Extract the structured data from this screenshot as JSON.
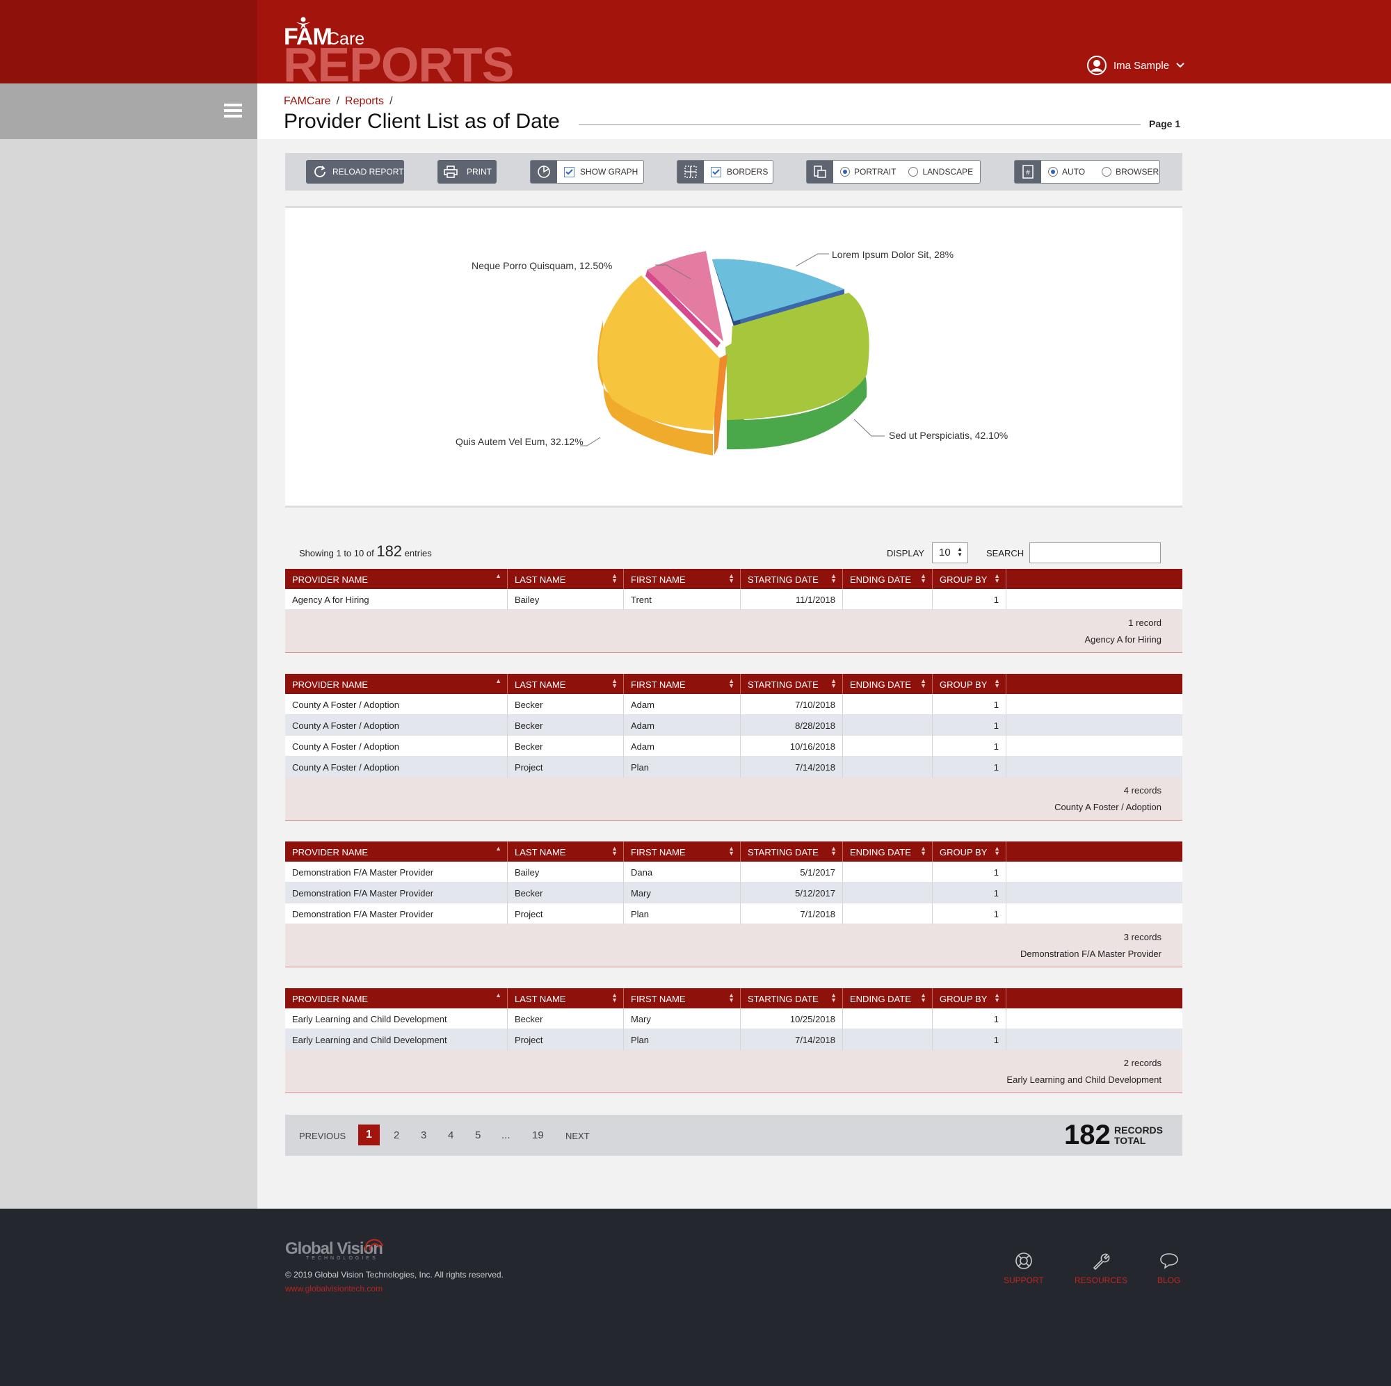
{
  "header": {
    "logo_fam": "FAM",
    "logo_care": "Care",
    "logo_reports": "REPORTS",
    "user_name": "Ima Sample"
  },
  "breadcrumb": {
    "items": [
      "FAMCare",
      "Reports"
    ],
    "separator": "/"
  },
  "page_title": "Provider Client List as of Date",
  "page_label": "Page 1",
  "toolbar": {
    "reload": "RELOAD REPORT",
    "print": "PRINT",
    "show_graph": "SHOW GRAPH",
    "borders": "BORDERS",
    "portrait": "PORTRAIT",
    "landscape": "LANDSCAPE",
    "auto": "AUTO",
    "browser": "BROWSER"
  },
  "chart_data": {
    "type": "pie",
    "title": "",
    "slices": [
      {
        "label": "Lorem Ipsum Dolor Sit, 28%",
        "value": 28,
        "color": "#6bbfdd"
      },
      {
        "label": "Sed ut Perspiciatis, 42.10%",
        "value": 42.1,
        "color": "#a6c63c"
      },
      {
        "label": "Quis Autem Vel Eum, 32.12%",
        "value": 32.12,
        "color": "#f7c43d"
      },
      {
        "label": "Neque Porro Quisquam, 12.50%",
        "value": 12.5,
        "color": "#e47ba0"
      }
    ]
  },
  "entries": {
    "prefix": "Showing 1 to 10 of",
    "count": "182",
    "suffix": "entries",
    "display_label": "DISPLAY",
    "display_value": "10",
    "search_label": "SEARCH"
  },
  "columns": [
    "PROVIDER NAME",
    "LAST NAME",
    "FIRST NAME",
    "STARTING DATE",
    "ENDING DATE",
    "GROUP BY"
  ],
  "groups": [
    {
      "rows": [
        [
          "Agency A for Hiring",
          "Bailey",
          "Trent",
          "11/1/2018",
          "",
          "1"
        ]
      ],
      "records": "1 record",
      "name": "Agency A for Hiring"
    },
    {
      "rows": [
        [
          "County A Foster / Adoption",
          "Becker",
          "Adam",
          "7/10/2018",
          "",
          "1"
        ],
        [
          "County A Foster / Adoption",
          "Becker",
          "Adam",
          "8/28/2018",
          "",
          "1"
        ],
        [
          "County A Foster / Adoption",
          "Becker",
          "Adam",
          "10/16/2018",
          "",
          "1"
        ],
        [
          "County A Foster / Adoption",
          "Project",
          "Plan",
          "7/14/2018",
          "",
          "1"
        ]
      ],
      "records": "4 records",
      "name": "County A Foster / Adoption"
    },
    {
      "rows": [
        [
          "Demonstration F/A Master Provider",
          "Bailey",
          "Dana",
          "5/1/2017",
          "",
          "1"
        ],
        [
          "Demonstration F/A Master Provider",
          "Becker",
          "Mary",
          "5/12/2017",
          "",
          "1"
        ],
        [
          "Demonstration F/A Master Provider",
          "Project",
          "Plan",
          "7/1/2018",
          "",
          "1"
        ]
      ],
      "records": "3 records",
      "name": "Demonstration F/A Master Provider"
    },
    {
      "rows": [
        [
          "Early Learning and Child Development",
          "Becker",
          "Mary",
          "10/25/2018",
          "",
          "1"
        ],
        [
          "Early Learning and Child Development",
          "Project",
          "Plan",
          "7/14/2018",
          "",
          "1"
        ]
      ],
      "records": "2 records",
      "name": "Early Learning and Child Development"
    }
  ],
  "pagination": {
    "previous": "PREVIOUS",
    "current": "1",
    "pages": [
      "2",
      "3",
      "4",
      "5",
      "...",
      "19"
    ],
    "next": "NEXT",
    "total_number": "182",
    "total_label_1": "RECORDS",
    "total_label_2": "TOTAL"
  },
  "footer": {
    "logo": "Global Vision",
    "logo_sub": "TECHNOLOGIES",
    "copyright": "© 2019 Global Vision Technologies, Inc. All rights reserved.",
    "url": "www.globalvisiontech.com",
    "links": [
      "SUPPORT",
      "RESOURCES",
      "BLOG"
    ]
  },
  "colors": {
    "brand_red": "#a2140c",
    "header_dark": "#8f110c",
    "footer_bg": "#24272e"
  }
}
